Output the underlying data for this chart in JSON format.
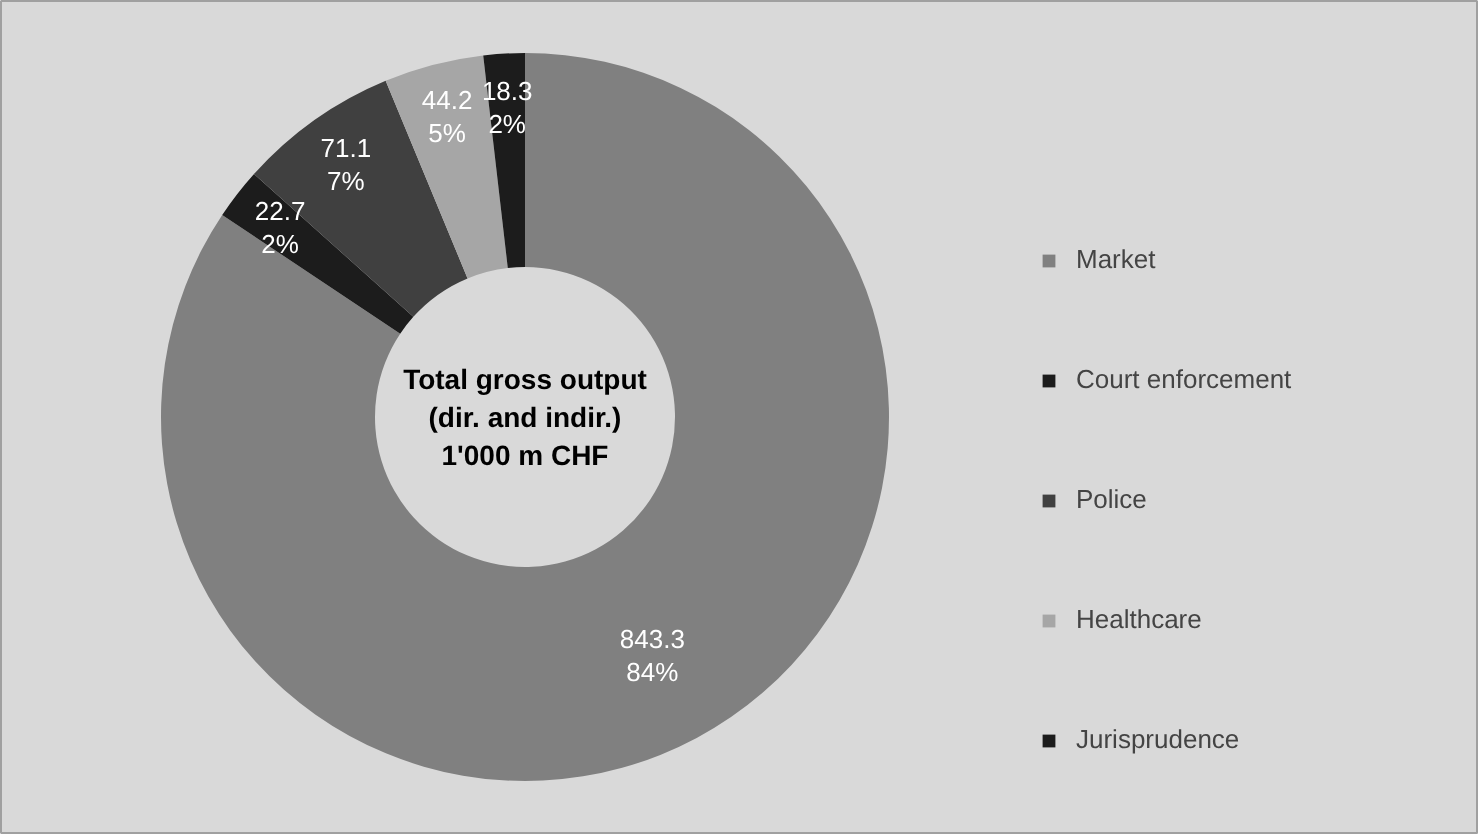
{
  "chart_data": {
    "type": "donut",
    "title": "Total gross output\n(dir. and indir.)\n1'000 m CHF",
    "categories": [
      "Market",
      "Court enforcement",
      "Police",
      "Healthcare",
      "Jurisprudence"
    ],
    "values": [
      843.3,
      22.7,
      71.1,
      44.2,
      18.3
    ],
    "colors": [
      "#808080",
      "#1c1c1c",
      "#404040",
      "#a6a6a6",
      "#1c1c1c"
    ],
    "value_labels": [
      "843.3\n84%",
      "22.7\n2%",
      "71.1\n7%",
      "44.2\n5%",
      "18.3\n2%"
    ],
    "legend": "right"
  }
}
